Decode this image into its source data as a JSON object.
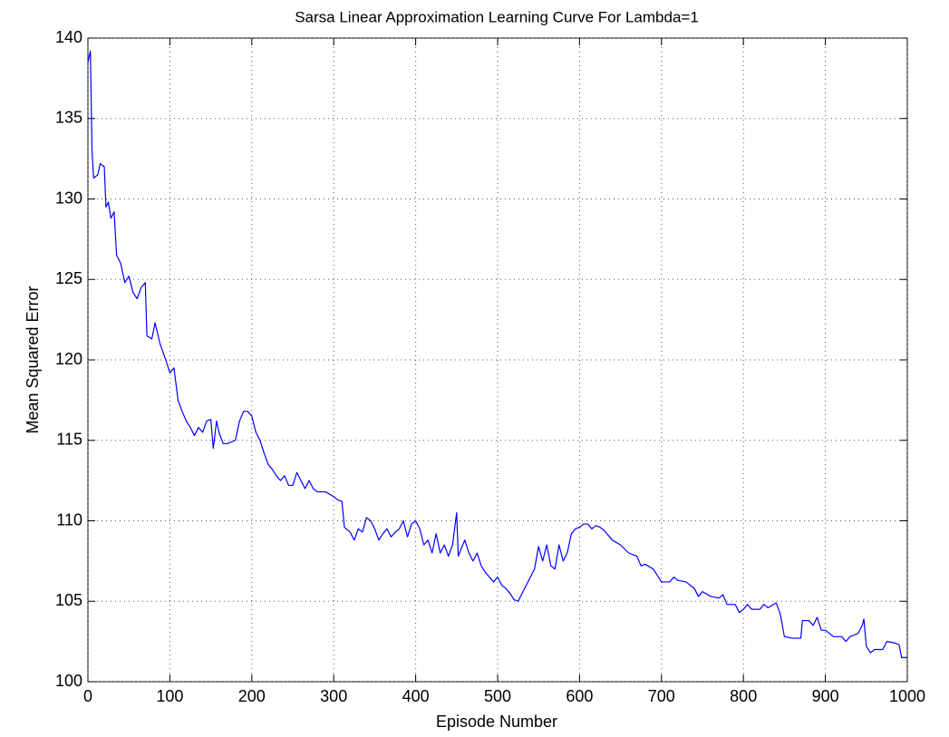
{
  "chart_data": {
    "type": "line",
    "title": "Sarsa Linear Approximation Learning Curve For Lambda=1",
    "x_label": "Episode Number",
    "y_label": "Mean Squared Error",
    "xlim": [
      0,
      1000
    ],
    "ylim": [
      100,
      140
    ],
    "xticks": [
      0,
      100,
      200,
      300,
      400,
      500,
      600,
      700,
      800,
      900,
      1000
    ],
    "yticks": [
      100,
      105,
      110,
      115,
      120,
      125,
      130,
      135,
      140
    ],
    "grid": true,
    "series": [
      {
        "color": "#0000ff",
        "x": [
          0,
          3,
          5,
          7,
          12,
          15,
          20,
          22,
          25,
          28,
          32,
          35,
          40,
          45,
          50,
          55,
          60,
          65,
          70,
          72,
          78,
          82,
          88,
          95,
          100,
          105,
          110,
          115,
          120,
          125,
          130,
          135,
          140,
          145,
          150,
          153,
          157,
          160,
          165,
          170,
          180,
          185,
          190,
          195,
          200,
          205,
          210,
          215,
          220,
          225,
          230,
          235,
          240,
          245,
          250,
          255,
          260,
          265,
          270,
          275,
          280,
          290,
          300,
          305,
          310,
          313,
          320,
          325,
          330,
          335,
          340,
          345,
          350,
          355,
          360,
          365,
          370,
          375,
          380,
          385,
          390,
          395,
          400,
          405,
          410,
          415,
          420,
          425,
          430,
          435,
          440,
          445,
          450,
          452,
          455,
          460,
          465,
          470,
          475,
          480,
          485,
          490,
          495,
          500,
          505,
          510,
          515,
          520,
          525,
          530,
          535,
          540,
          545,
          550,
          555,
          560,
          565,
          570,
          575,
          580,
          585,
          590,
          595,
          600,
          605,
          610,
          615,
          620,
          625,
          630,
          640,
          650,
          660,
          670,
          675,
          680,
          690,
          695,
          700,
          710,
          715,
          720,
          730,
          740,
          745,
          750,
          760,
          770,
          775,
          780,
          790,
          795,
          800,
          805,
          810,
          820,
          825,
          830,
          840,
          845,
          850,
          860,
          870,
          872,
          880,
          885,
          890,
          895,
          900,
          910,
          920,
          925,
          930,
          940,
          945,
          947,
          950,
          955,
          960,
          970,
          975,
          985,
          990,
          993,
          1000
        ],
        "values": [
          138.5,
          139.2,
          133,
          131.3,
          131.5,
          132.2,
          132,
          129.5,
          129.8,
          128.8,
          129.2,
          126.5,
          126,
          124.8,
          125.2,
          124.2,
          123.8,
          124.5,
          124.8,
          121.5,
          121.3,
          122.3,
          121,
          120,
          119.2,
          119.5,
          117.5,
          116.8,
          116.2,
          115.8,
          115.3,
          115.8,
          115.5,
          116.2,
          116.3,
          114.5,
          116.2,
          115.5,
          114.8,
          114.8,
          115,
          116.2,
          116.8,
          116.8,
          116.5,
          115.5,
          115,
          114.2,
          113.5,
          113.2,
          112.8,
          112.5,
          112.8,
          112.2,
          112.2,
          113,
          112.5,
          112,
          112.5,
          112,
          111.8,
          111.8,
          111.5,
          111.3,
          111.2,
          109.6,
          109.3,
          108.8,
          109.5,
          109.3,
          110.2,
          110,
          109.5,
          108.8,
          109.2,
          109.5,
          109,
          109.3,
          109.5,
          110,
          109,
          109.8,
          110,
          109.5,
          108.5,
          108.8,
          108,
          109.2,
          108,
          108.5,
          107.8,
          108.5,
          110.5,
          107.8,
          108.2,
          108.8,
          108,
          107.5,
          108,
          107.2,
          106.8,
          106.5,
          106.2,
          106.5,
          106,
          105.8,
          105.5,
          105.1,
          105,
          105.5,
          106,
          106.5,
          107,
          108.4,
          107.5,
          108.5,
          107.2,
          107,
          108.5,
          107.5,
          108,
          109.2,
          109.5,
          109.6,
          109.8,
          109.8,
          109.5,
          109.7,
          109.6,
          109.4,
          108.8,
          108.5,
          108,
          107.8,
          107.2,
          107.3,
          107,
          106.6,
          106.2,
          106.2,
          106.5,
          106.3,
          106.2,
          105.8,
          105.3,
          105.6,
          105.3,
          105.2,
          105.4,
          104.8,
          104.8,
          104.3,
          104.5,
          104.8,
          104.5,
          104.5,
          104.8,
          104.6,
          104.9,
          104.2,
          102.8,
          102.7,
          102.7,
          103.8,
          103.8,
          103.5,
          104,
          103.2,
          103.2,
          102.8,
          102.8,
          102.5,
          102.8,
          103,
          103.5,
          103.9,
          102.2,
          101.8,
          102,
          102,
          102.5,
          102.4,
          102.3,
          101.5,
          101.5
        ]
      }
    ]
  }
}
